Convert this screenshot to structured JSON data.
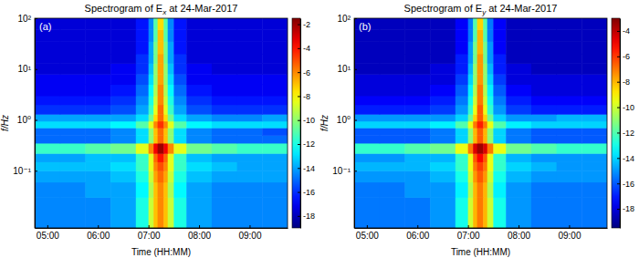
{
  "chart_data": [
    {
      "type": "heatmap",
      "title": [
        "Spectrogram of E",
        "x",
        " at 24-Mar-2017"
      ],
      "annotations": [
        "(a)"
      ],
      "x_label": "Time (HH:MM)",
      "y_label": "f/Hz",
      "log": "y",
      "xlim": [
        4.75,
        9.75
      ],
      "xticks": [
        {
          "value": 5,
          "label": "05:00"
        },
        {
          "value": 6,
          "label": "06:00"
        },
        {
          "value": 7,
          "label": "07:00"
        },
        {
          "value": 8,
          "label": "08:00"
        },
        {
          "value": 9,
          "label": "09:00"
        }
      ],
      "ylim": [
        0.0075,
        100
      ],
      "yticks": [
        {
          "value": 0.1,
          "label": "10⁻¹"
        },
        {
          "value": 1,
          "label": "10⁰"
        },
        {
          "value": 10,
          "label": "10¹"
        },
        {
          "value": 100,
          "label": "10²"
        }
      ],
      "zlim": [
        -19,
        -1.5
      ],
      "zticks": [
        -18,
        -16,
        -14,
        -12,
        -10,
        -8,
        -6,
        -4,
        -2
      ],
      "x": [
        4.75,
        5.25,
        5.75,
        6.25,
        6.75,
        7.0,
        7.1,
        7.18,
        7.3,
        7.38,
        7.5,
        7.75,
        8.25,
        8.75,
        9.25,
        9.75
      ],
      "y": [
        0.0075,
        0.03,
        0.06,
        0.1,
        0.15,
        0.22,
        0.35,
        0.5,
        0.7,
        0.95,
        1.3,
        2,
        3,
        5,
        8,
        13,
        20,
        35,
        60,
        100
      ],
      "z": [
        [
          -14.5,
          -14.5,
          -14.5,
          -14,
          -12,
          -9,
          -7,
          -6,
          -7,
          -9,
          -12,
          -14,
          -14.5,
          -14.5,
          -14.5
        ],
        [
          -14.5,
          -14.5,
          -14,
          -14,
          -12.5,
          -9.5,
          -7,
          -6,
          -7,
          -9.5,
          -12.5,
          -14,
          -14.5,
          -14.5,
          -14.5
        ],
        [
          -14,
          -14,
          -14,
          -13.5,
          -12,
          -9,
          -6.5,
          -5.5,
          -6.5,
          -9,
          -12,
          -13.5,
          -14,
          -14,
          -14
        ],
        [
          -13.5,
          -13.5,
          -13.5,
          -13,
          -11.5,
          -8.5,
          -6,
          -5,
          -6,
          -8.5,
          -11.5,
          -13,
          -13.5,
          -14,
          -14
        ],
        [
          -14,
          -14,
          -13.5,
          -13.5,
          -11.5,
          -8.5,
          -5.5,
          -4,
          -5.5,
          -8.5,
          -11.5,
          -13.5,
          -14,
          -14,
          -14
        ],
        [
          -11.5,
          -11.5,
          -11,
          -10.5,
          -8.5,
          -6,
          -3.5,
          -2,
          -3.5,
          -6,
          -8.5,
          -10.5,
          -11,
          -11.5,
          -11.5
        ],
        [
          -15,
          -15,
          -15,
          -14.5,
          -13,
          -10,
          -7,
          -5.5,
          -7,
          -10,
          -13,
          -14.5,
          -15,
          -15,
          -15
        ],
        [
          -15,
          -15,
          -15,
          -14.5,
          -13,
          -10,
          -7,
          -5.5,
          -7,
          -10,
          -13,
          -14.5,
          -15,
          -15,
          -15.5
        ],
        [
          -13,
          -13,
          -13,
          -12.5,
          -11,
          -8.5,
          -6,
          -4.5,
          -6,
          -8.5,
          -11,
          -12.5,
          -13,
          -13,
          -13
        ],
        [
          -14,
          -14,
          -14,
          -14,
          -13,
          -10.5,
          -7.5,
          -5.5,
          -7.5,
          -10.5,
          -13,
          -14,
          -14.5,
          -14.5,
          -14
        ],
        [
          -16,
          -16,
          -16,
          -15.5,
          -14,
          -11.5,
          -8.5,
          -5.5,
          -8.5,
          -11.5,
          -14,
          -15.5,
          -16,
          -16,
          -16
        ],
        [
          -16.5,
          -16.5,
          -16.5,
          -16,
          -14.5,
          -12,
          -9,
          -6,
          -9,
          -12,
          -14.5,
          -16,
          -16.5,
          -16.5,
          -16.5
        ],
        [
          -17,
          -17,
          -17,
          -16.5,
          -15,
          -12.5,
          -9.5,
          -6,
          -9.5,
          -12.5,
          -15,
          -16.5,
          -17,
          -17,
          -17
        ],
        [
          -17,
          -17,
          -17,
          -17,
          -15.5,
          -13,
          -10,
          -6.5,
          -10,
          -13,
          -15.5,
          -17,
          -17,
          -17,
          -17
        ],
        [
          -17.5,
          -17.5,
          -17.5,
          -17,
          -16,
          -13.5,
          -10,
          -6.5,
          -10,
          -13.5,
          -16,
          -17,
          -17.5,
          -17.5,
          -17.5
        ],
        [
          -17.5,
          -17.5,
          -17.5,
          -17.5,
          -16,
          -14,
          -10.5,
          -6.5,
          -10.5,
          -14,
          -16,
          -17.5,
          -17.5,
          -17.5,
          -17.5
        ],
        [
          -17.5,
          -17.5,
          -17.5,
          -17.5,
          -16.5,
          -14,
          -10.5,
          -7,
          -10.5,
          -14,
          -16.5,
          -17.5,
          -17.5,
          -17.5,
          -17.5
        ],
        [
          -17.5,
          -17.5,
          -17.5,
          -17.5,
          -16.5,
          -14.5,
          -11,
          -7,
          -11,
          -14.5,
          -16.5,
          -17.5,
          -17.5,
          -17.5,
          -17.5
        ],
        [
          -17.5,
          -17.5,
          -17.5,
          -17.5,
          -16.5,
          -14.5,
          -11,
          -7.5,
          -11,
          -14.5,
          -16.5,
          -17.5,
          -17.5,
          -17.5,
          -17.5
        ]
      ]
    },
    {
      "type": "heatmap",
      "title": [
        "Spectrogram of E",
        "y",
        " at 24-Mar-2017"
      ],
      "annotations": [
        "(b)"
      ],
      "x_label": "Time (HH:MM)",
      "y_label": "f/Hz",
      "log": "y",
      "xlim": [
        4.75,
        9.75
      ],
      "xticks": [
        {
          "value": 5,
          "label": "05:00"
        },
        {
          "value": 6,
          "label": "06:00"
        },
        {
          "value": 7,
          "label": "07:00"
        },
        {
          "value": 8,
          "label": "08:00"
        },
        {
          "value": 9,
          "label": "09:00"
        }
      ],
      "ylim": [
        0.0075,
        100
      ],
      "yticks": [
        {
          "value": 0.1,
          "label": "10⁻¹"
        },
        {
          "value": 1,
          "label": "10⁰"
        },
        {
          "value": 10,
          "label": "10¹"
        },
        {
          "value": 100,
          "label": "10²"
        }
      ],
      "zlim": [
        -19.5,
        -3
      ],
      "zticks": [
        -18,
        -16,
        -14,
        -12,
        -10,
        -8,
        -6,
        -4
      ],
      "x": [
        4.75,
        5.25,
        5.75,
        6.25,
        6.75,
        7.0,
        7.1,
        7.18,
        7.3,
        7.38,
        7.5,
        7.75,
        8.25,
        8.75,
        9.25,
        9.75
      ],
      "y": [
        0.0075,
        0.03,
        0.06,
        0.1,
        0.15,
        0.22,
        0.35,
        0.5,
        0.7,
        0.95,
        1.3,
        2,
        3,
        5,
        8,
        13,
        20,
        35,
        60,
        100
      ],
      "z": [
        [
          -15.5,
          -15.5,
          -15.5,
          -15,
          -13,
          -10,
          -8,
          -7,
          -8,
          -10,
          -13,
          -15,
          -15.5,
          -15.5,
          -15.5
        ],
        [
          -15.5,
          -15.5,
          -15,
          -15,
          -13.5,
          -10.5,
          -8,
          -7,
          -8,
          -10.5,
          -13.5,
          -15,
          -15.5,
          -15.5,
          -15.5
        ],
        [
          -15,
          -15,
          -15,
          -14.5,
          -13,
          -10,
          -7.5,
          -6.5,
          -7.5,
          -10,
          -13,
          -14.5,
          -15,
          -15,
          -15
        ],
        [
          -14.5,
          -14.5,
          -14.5,
          -14,
          -12.5,
          -9.5,
          -7,
          -6,
          -7,
          -9.5,
          -12.5,
          -14,
          -14.5,
          -15,
          -15
        ],
        [
          -15,
          -15,
          -14.5,
          -14.5,
          -12.5,
          -9.5,
          -6.5,
          -5,
          -6.5,
          -9.5,
          -12.5,
          -14.5,
          -15,
          -15,
          -15
        ],
        [
          -12.5,
          -12.5,
          -12,
          -11.5,
          -9.5,
          -7,
          -4.5,
          -3.5,
          -4.5,
          -7,
          -9.5,
          -11.5,
          -12,
          -12.5,
          -12.5
        ],
        [
          -16,
          -16,
          -16,
          -15.5,
          -14,
          -11,
          -8,
          -6.5,
          -8,
          -11,
          -14,
          -15.5,
          -16,
          -16,
          -16
        ],
        [
          -16,
          -16,
          -16,
          -15.5,
          -14,
          -11,
          -8,
          -6.5,
          -8,
          -11,
          -14,
          -15.5,
          -16,
          -16,
          -16
        ],
        [
          -14,
          -14,
          -14,
          -13.5,
          -12,
          -9.5,
          -7,
          -5.5,
          -7,
          -9.5,
          -12,
          -13.5,
          -14,
          -14,
          -14
        ],
        [
          -15,
          -15,
          -15,
          -15,
          -14,
          -11.5,
          -8.5,
          -6.5,
          -8.5,
          -11.5,
          -14,
          -15,
          -15,
          -14.5,
          -14.5
        ],
        [
          -17,
          -17,
          -17,
          -16.5,
          -15,
          -12.5,
          -9.5,
          -6.5,
          -9.5,
          -12.5,
          -15,
          -16.5,
          -17,
          -17,
          -17
        ],
        [
          -17.5,
          -17.5,
          -17.5,
          -17,
          -15.5,
          -13,
          -10,
          -7,
          -10,
          -13,
          -15.5,
          -17,
          -17.5,
          -17.5,
          -17.5
        ],
        [
          -18,
          -18,
          -18,
          -17.5,
          -16,
          -13.5,
          -10.5,
          -7,
          -10.5,
          -13.5,
          -16,
          -17.5,
          -18,
          -18,
          -18
        ],
        [
          -18,
          -18,
          -18,
          -18,
          -16.5,
          -14,
          -11,
          -7.5,
          -11,
          -14,
          -16.5,
          -18,
          -18,
          -18,
          -18
        ],
        [
          -18.5,
          -18.5,
          -18.5,
          -18,
          -17,
          -14.5,
          -11,
          -7.5,
          -11,
          -14.5,
          -17,
          -18,
          -18.5,
          -18.5,
          -18.5
        ],
        [
          -18.5,
          -18.5,
          -18.5,
          -18.5,
          -17,
          -15,
          -11.5,
          -7.5,
          -11.5,
          -15,
          -17,
          -18.5,
          -18.5,
          -18.5,
          -18.5
        ],
        [
          -18.5,
          -18.5,
          -18.5,
          -18.5,
          -17.5,
          -15,
          -11.5,
          -8,
          -11.5,
          -15,
          -17.5,
          -18.5,
          -18.5,
          -18.5,
          -18.5
        ],
        [
          -18.5,
          -18.5,
          -18.5,
          -18.5,
          -17.5,
          -15.5,
          -12,
          -8,
          -12,
          -15.5,
          -17.5,
          -18.5,
          -18.5,
          -18.5,
          -18.5
        ],
        [
          -18.5,
          -18.5,
          -18.5,
          -18.5,
          -17.5,
          -15.5,
          -12,
          -8.5,
          -12,
          -15.5,
          -17.5,
          -18.5,
          -18.5,
          -18.5,
          -18.5
        ]
      ]
    }
  ]
}
